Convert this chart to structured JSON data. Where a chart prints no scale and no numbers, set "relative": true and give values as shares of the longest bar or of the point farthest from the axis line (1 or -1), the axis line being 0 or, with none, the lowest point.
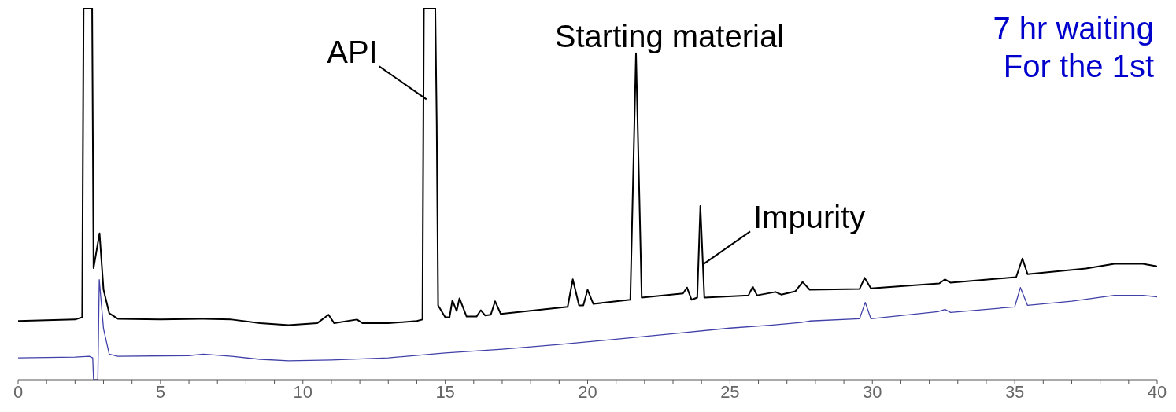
{
  "chart_data": {
    "type": "line",
    "relative": true,
    "marker": "none",
    "line_style": "solid",
    "xlim": [
      0,
      40
    ],
    "xticks": [
      0,
      {
        "value": 1,
        "label": null
      },
      {
        "value": 2,
        "label": null
      },
      {
        "value": 3,
        "label": null
      },
      {
        "value": 4,
        "label": null
      },
      5,
      {
        "value": 6,
        "label": null
      },
      {
        "value": 7,
        "label": null
      },
      {
        "value": 8,
        "label": null
      },
      {
        "value": 9,
        "label": null
      },
      10,
      {
        "value": 11,
        "label": null
      },
      {
        "value": 12,
        "label": null
      },
      {
        "value": 13,
        "label": null
      },
      {
        "value": 14,
        "label": null
      },
      15,
      {
        "value": 16,
        "label": null
      },
      {
        "value": 17,
        "label": null
      },
      {
        "value": 18,
        "label": null
      },
      {
        "value": 19,
        "label": null
      },
      20,
      {
        "value": 21,
        "label": null
      },
      {
        "value": 22,
        "label": null
      },
      {
        "value": 23,
        "label": null
      },
      {
        "value": 24,
        "label": null
      },
      25,
      {
        "value": 26,
        "label": null
      },
      {
        "value": 27,
        "label": null
      },
      {
        "value": 28,
        "label": null
      },
      {
        "value": 29,
        "label": null
      },
      30,
      {
        "value": 31,
        "label": null
      },
      {
        "value": 32,
        "label": null
      },
      {
        "value": 33,
        "label": null
      },
      {
        "value": 34,
        "label": null
      },
      35,
      {
        "value": 36,
        "label": null
      },
      {
        "value": 37,
        "label": null
      },
      {
        "value": 38,
        "label": null
      },
      {
        "value": 39,
        "label": null
      },
      40
    ],
    "series": [
      {
        "color": "#000000",
        "x": [
          0,
          2,
          2.25,
          2.3,
          2.55,
          2.6,
          2.65,
          2.86,
          3.0,
          3.2,
          3.5,
          5,
          6.5,
          7.5,
          8.5,
          9.5,
          10.5,
          10.9,
          11.1,
          11.9,
          12.1,
          13,
          14,
          14.2,
          14.25,
          14.65,
          14.7,
          14.75,
          15.0,
          15.15,
          15.25,
          15.4,
          15.5,
          15.75,
          16.1,
          16.25,
          16.4,
          16.6,
          16.75,
          16.95,
          19.3,
          19.48,
          19.7,
          19.85,
          20.0,
          20.2,
          21.5,
          21.7,
          21.9,
          23.35,
          23.49,
          23.65,
          23.85,
          23.96,
          24.1,
          25.65,
          25.8,
          25.95,
          26.6,
          26.8,
          27.3,
          27.55,
          27.8,
          29.55,
          29.73,
          29.95,
          32.35,
          32.55,
          32.75,
          35.05,
          35.27,
          35.45,
          37.5,
          38.5,
          39.5,
          40
        ],
        "values": [
          0.158,
          0.162,
          0.168,
          1,
          1,
          1,
          0.3,
          0.394,
          0.242,
          0.179,
          0.164,
          0.162,
          0.164,
          0.162,
          0.152,
          0.147,
          0.152,
          0.175,
          0.152,
          0.162,
          0.152,
          0.152,
          0.158,
          0.162,
          1,
          1,
          0.695,
          0.2,
          0.168,
          0.168,
          0.213,
          0.185,
          0.219,
          0.17,
          0.17,
          0.187,
          0.173,
          0.175,
          0.211,
          0.177,
          0.196,
          0.27,
          0.2,
          0.2,
          0.242,
          0.204,
          0.215,
          0.878,
          0.221,
          0.232,
          0.248,
          0.215,
          0.221,
          0.467,
          0.221,
          0.227,
          0.25,
          0.227,
          0.236,
          0.229,
          0.238,
          0.263,
          0.242,
          0.244,
          0.274,
          0.246,
          0.259,
          0.27,
          0.261,
          0.276,
          0.326,
          0.284,
          0.299,
          0.312,
          0.312,
          0.305
        ]
      },
      {
        "color": "#4040a8",
        "x": [
          0,
          2,
          2.5,
          2.62,
          2.65,
          2.8,
          2.85,
          3.0,
          3.2,
          3.5,
          6,
          6.5,
          7.5,
          8.5,
          9.5,
          11,
          13,
          15,
          17,
          19,
          21,
          23,
          25,
          26.5,
          27.5,
          27.8,
          29.55,
          29.75,
          29.95,
          32.3,
          32.55,
          32.75,
          35.0,
          35.2,
          35.45,
          37,
          38.5,
          39.5,
          40
        ],
        "values": [
          0.059,
          0.061,
          0.063,
          0.059,
          0,
          0,
          0.269,
          0.137,
          0.069,
          0.063,
          0.065,
          0.069,
          0.063,
          0.055,
          0.051,
          0.053,
          0.059,
          0.072,
          0.082,
          0.095,
          0.109,
          0.124,
          0.139,
          0.147,
          0.154,
          0.158,
          0.164,
          0.208,
          0.164,
          0.183,
          0.189,
          0.181,
          0.196,
          0.248,
          0.2,
          0.211,
          0.227,
          0.227,
          0.223
        ]
      }
    ],
    "annotations": [
      {
        "text": "API",
        "x": 14.34,
        "y": 0.754
      },
      {
        "text": "Starting material",
        "x": 21.75,
        "y": 0.878
      },
      {
        "text": "Impurity",
        "x": 24.05,
        "y": 0.31
      },
      "7 hr waiting",
      "For the 1st"
    ]
  }
}
